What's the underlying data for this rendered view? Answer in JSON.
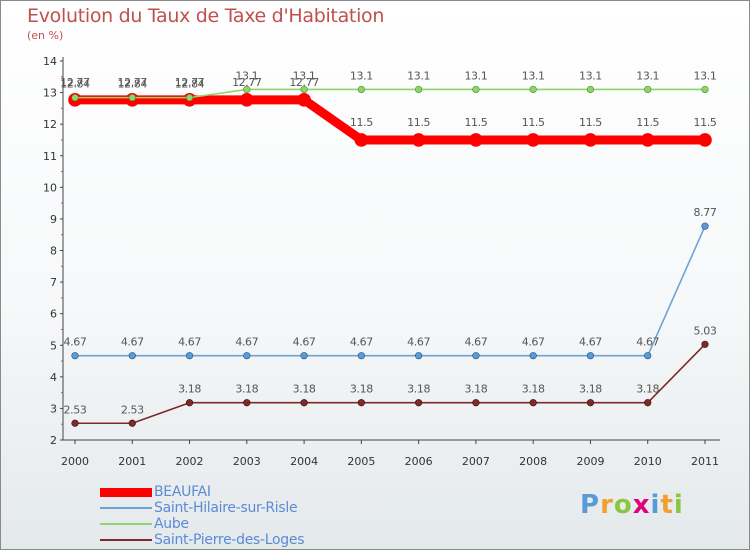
{
  "header": {
    "title": "Evolution du Taux de Taxe d'Habitation",
    "subtitle": "(en %)"
  },
  "chart_data": {
    "type": "line",
    "title": "Evolution du Taux de Taxe d'Habitation",
    "ylabel": "(en %)",
    "xlabel": "",
    "ylim": [
      2,
      14
    ],
    "yticks": [
      "2",
      "3",
      "4",
      "5",
      "6",
      "7",
      "8",
      "9",
      "10",
      "11",
      "12",
      "13",
      "14"
    ],
    "categories": [
      "2000",
      "2001",
      "2002",
      "2003",
      "2004",
      "2005",
      "2006",
      "2007",
      "2008",
      "2009",
      "2010",
      "2011"
    ],
    "grid": false,
    "legend_position": "bottom-left",
    "series": [
      {
        "name": "BEAUFAI",
        "color": "#ff0000",
        "values": [
          12.77,
          12.77,
          12.77,
          12.77,
          12.77,
          11.5,
          11.5,
          11.5,
          11.5,
          11.5,
          11.5,
          11.5
        ],
        "labels": [
          "12.77",
          "12.77",
          "12.77",
          "12.77",
          "12.77",
          "11.5",
          "11.5",
          "11.5",
          "11.5",
          "11.5",
          "11.5",
          "11.5"
        ]
      },
      {
        "name": "Saint-Hilaire-sur-Risle",
        "color": "#6fa3d3",
        "values": [
          4.67,
          4.67,
          4.67,
          4.67,
          4.67,
          4.67,
          4.67,
          4.67,
          4.67,
          4.67,
          4.67,
          8.77
        ],
        "labels": [
          "4.67",
          "4.67",
          "4.67",
          "4.67",
          "4.67",
          "4.67",
          "4.67",
          "4.67",
          "4.67",
          "4.67",
          "4.67",
          "8.77"
        ]
      },
      {
        "name": "Aube",
        "color": "#8fd46b",
        "values": [
          12.84,
          12.84,
          12.84,
          13.1,
          13.1,
          13.1,
          13.1,
          13.1,
          13.1,
          13.1,
          13.1,
          13.1
        ],
        "labels": [
          "12.84",
          "12.84",
          "12.84",
          "13.1",
          "13.1",
          "13.1",
          "13.1",
          "13.1",
          "13.1",
          "13.1",
          "13.1",
          "13.1"
        ]
      },
      {
        "name": "Saint-Pierre-des-Loges",
        "color": "#7d2a2a",
        "values": [
          2.53,
          2.53,
          3.18,
          3.18,
          3.18,
          3.18,
          3.18,
          3.18,
          3.18,
          3.18,
          3.18,
          5.03
        ],
        "labels": [
          "2.53",
          "2.53",
          "3.18",
          "3.18",
          "3.18",
          "3.18",
          "3.18",
          "3.18",
          "3.18",
          "3.18",
          "3.18",
          "5.03"
        ]
      }
    ]
  },
  "branding": {
    "logo_letters": [
      "P",
      "r",
      "o",
      "x",
      "i",
      "t",
      "i"
    ],
    "logo_colors": [
      "#5b9bd5",
      "#f0a030",
      "#8cc63f",
      "#e2007a",
      "#5b9bd5",
      "#f0a030",
      "#8cc63f"
    ]
  }
}
